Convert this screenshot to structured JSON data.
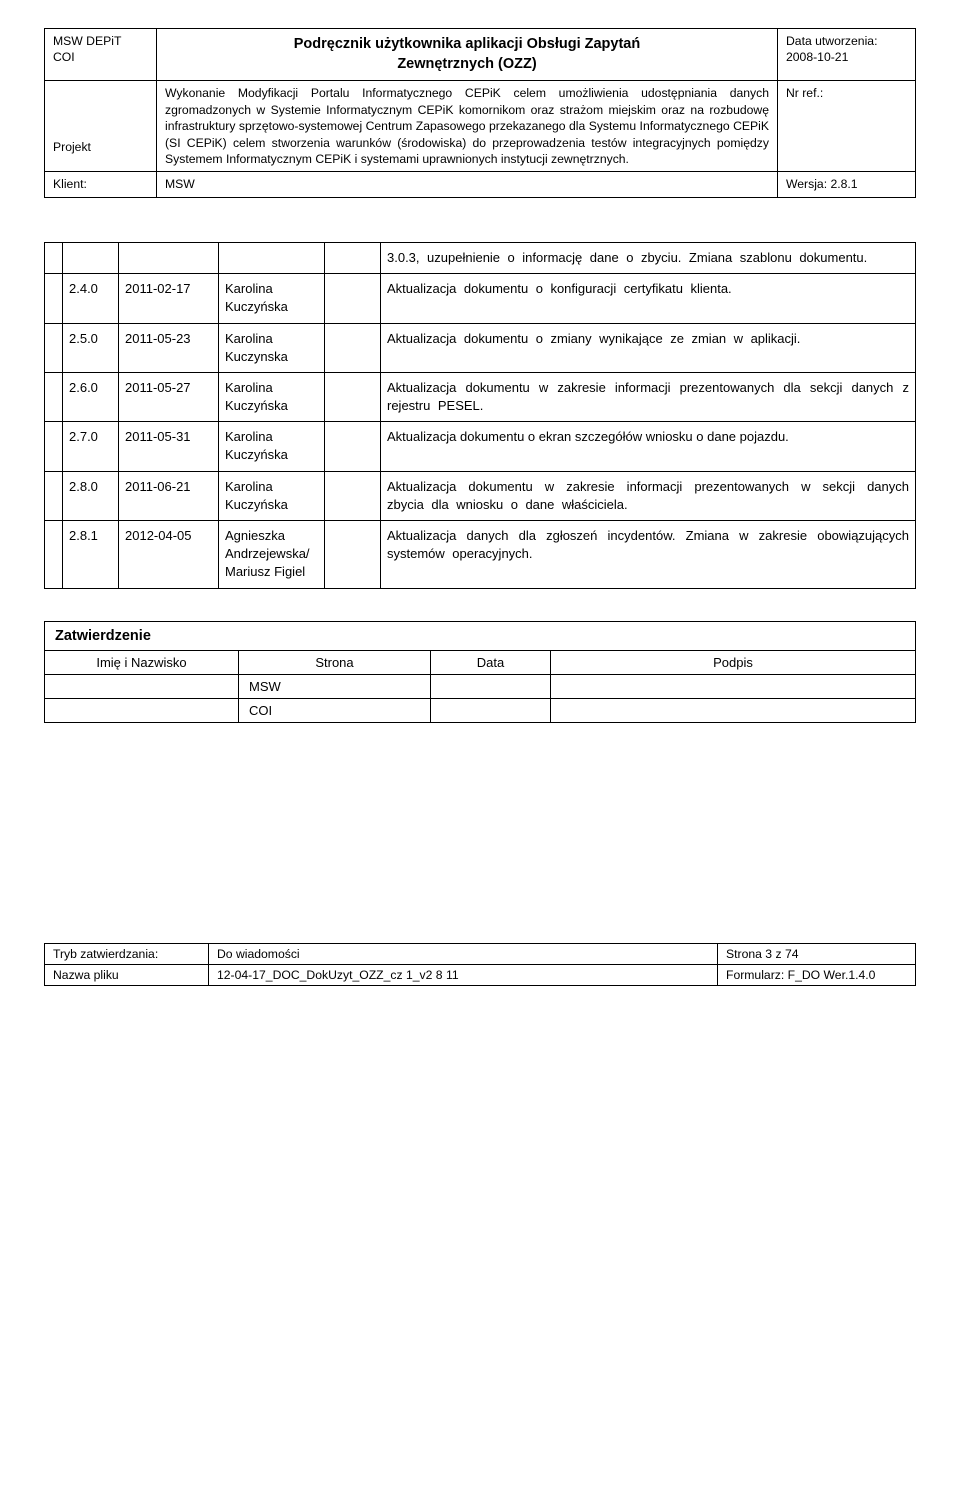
{
  "header": {
    "org1": "MSW DEPiT",
    "org2": "COI",
    "title_line1": "Podręcznik użytkownika aplikacji Obsługi Zapytań",
    "title_line2": "Zewnętrznych (OZZ)",
    "created_label": "Data utworzenia:",
    "created_date": "2008-10-21",
    "project_label": "Projekt",
    "project_text": "Wykonanie Modyfikacji Portalu Informatycznego CEPiK celem umożliwienia udostępniania danych zgromadzonych w Systemie Informatycznym CEPiK komornikom oraz strażom miejskim oraz na rozbudowę infrastruktury sprzętowo-systemowej Centrum Zapasowego przekazanego dla Systemu Informatycznego CEPiK (SI CEPiK) celem stworzenia warunków (środowiska) do przeprowadzenia testów integracyjnych pomiędzy Systemem Informatycznym CEPiK i systemami uprawnionych instytucji zewnętrznych.",
    "ref_label": "Nr ref.:",
    "client_label": "Klient:",
    "client_value": "MSW",
    "version_label": "Wersja: 2.8.1"
  },
  "history_top": "3.0.3, uzupełnienie o informację dane o zbyciu. Zmiana szablonu dokumentu.",
  "history_rows": [
    {
      "ver": "2.4.0",
      "date": "2011-02-17",
      "author": "Karolina Kuczyńska",
      "desc": "Aktualizacja dokumentu o konfiguracji certyfikatu klienta."
    },
    {
      "ver": "2.5.0",
      "date": "2011-05-23",
      "author": "Karolina Kuczynska",
      "desc": "Aktualizacja dokumentu o zmiany wynikające ze zmian w aplikacji."
    },
    {
      "ver": "2.6.0",
      "date": "2011-05-27",
      "author": "Karolina Kuczyńska",
      "desc": "Aktualizacja dokumentu w zakresie informacji prezentowanych dla sekcji danych z rejestru PESEL."
    },
    {
      "ver": "2.7.0",
      "date": "2011-05-31",
      "author": "Karolina Kuczyńska",
      "desc": "Aktualizacja dokumentu o ekran szczegółów wniosku o dane pojazdu."
    },
    {
      "ver": "2.8.0",
      "date": "2011-06-21",
      "author": "Karolina Kuczyńska",
      "desc": "Aktualizacja dokumentu w zakresie informacji prezentowanych w sekcji danych zbycia dla wniosku o dane właściciela."
    },
    {
      "ver": "2.8.1",
      "date": "2012-04-05",
      "author": "Agnieszka Andrzejewska/Mariusz Figiel",
      "desc": "Aktualizacja danych dla zgłoszeń incydentów. Zmiana w zakresie obowiązujących systemów operacyjnych."
    }
  ],
  "approval": {
    "title": "Zatwierdzenie",
    "col_name": "Imię i Nazwisko",
    "col_party": "Strona",
    "col_date": "Data",
    "col_sign": "Podpis",
    "row1_party": "MSW",
    "row2_party": "COI"
  },
  "footer": {
    "r1c1_label": "Tryb zatwierdzania:",
    "r1c2": "Do wiadomości",
    "r1c3": "Strona 3 z 74",
    "r2c1_label": "Nazwa pliku",
    "r2c2": "12-04-17_DOC_DokUzyt_OZZ_cz 1_v2 8 11",
    "r2c3": "Formularz: F_DO Wer.1.4.0"
  }
}
